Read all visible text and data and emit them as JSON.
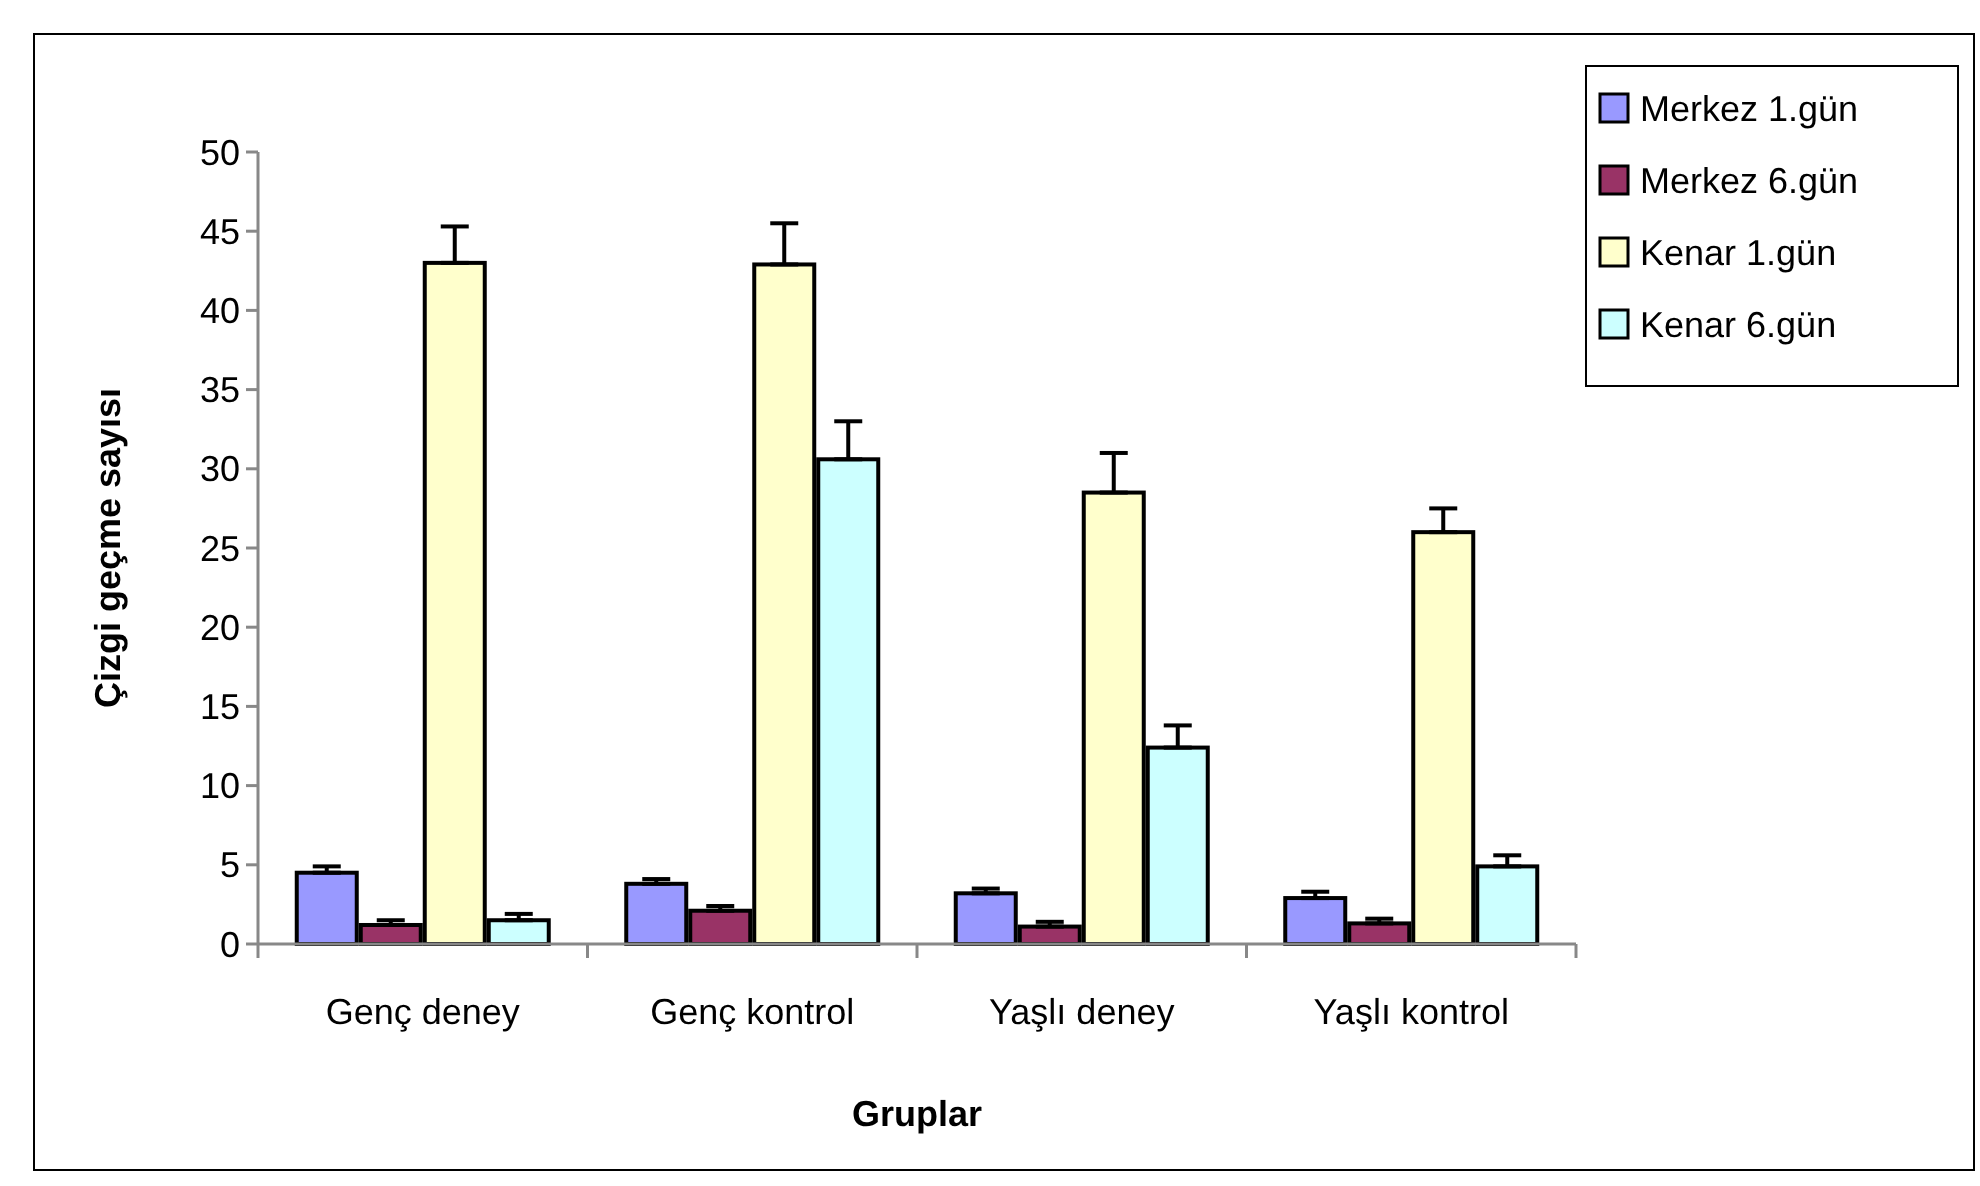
{
  "chart_data": {
    "type": "bar",
    "xlabel": "Gruplar",
    "ylabel": "Çizgi geçme sayısı",
    "categories": [
      "Genç deney",
      "Genç kontrol",
      "Yaşlı deney",
      "Yaşlı kontrol"
    ],
    "series": [
      {
        "name": "Merkez 1.gün",
        "color": "#9999ff",
        "values": [
          4.5,
          3.8,
          3.2,
          2.9
        ],
        "errors": [
          [
            4.5,
            4.9
          ],
          [
            3.8,
            4.1
          ],
          [
            3.2,
            3.5
          ],
          [
            2.9,
            3.3
          ]
        ]
      },
      {
        "name": "Merkez 6.gün",
        "color": "#993366",
        "values": [
          1.2,
          2.1,
          1.1,
          1.3
        ],
        "errors": [
          [
            1.2,
            1.5
          ],
          [
            2.1,
            2.4
          ],
          [
            1.1,
            1.4
          ],
          [
            1.3,
            1.6
          ]
        ]
      },
      {
        "name": "Kenar 1.gün",
        "color": "#ffffcc",
        "values": [
          43,
          42.9,
          28.5,
          26
        ],
        "errors": [
          [
            43,
            45.3
          ],
          [
            42.9,
            45.5
          ],
          [
            28.5,
            31
          ],
          [
            26,
            27.5
          ]
        ]
      },
      {
        "name": "Kenar 6.gün",
        "color": "#ccffff",
        "values": [
          1.5,
          30.6,
          12.4,
          4.9
        ],
        "errors": [
          [
            1.5,
            1.9
          ],
          [
            30.6,
            33
          ],
          [
            12.4,
            13.8
          ],
          [
            4.9,
            5.6
          ]
        ]
      }
    ],
    "ylim": [
      0,
      50
    ],
    "yticks": [
      0,
      5,
      10,
      15,
      20,
      25,
      30,
      35,
      40,
      45,
      50
    ],
    "grid": false,
    "legend": "top right"
  }
}
